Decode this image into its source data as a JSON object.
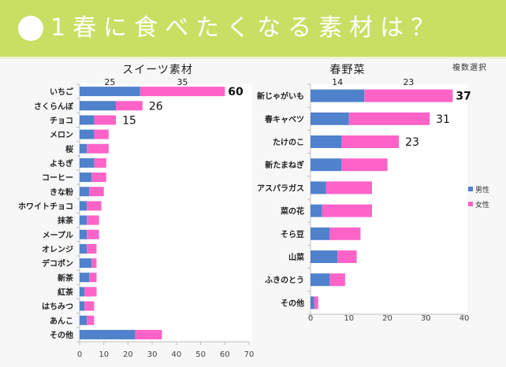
{
  "banner": {
    "title": "1春に食べたくなる素材は？",
    "icon": "white-circle-bullet"
  },
  "note": "複数選択",
  "colors": {
    "male": "#4f81cc",
    "female": "#ff63c8",
    "banner": "#c8df64"
  },
  "chart_data": [
    {
      "type": "bar",
      "orientation": "horizontal",
      "stacked": true,
      "title": "スイーツ素材",
      "xlabel": "",
      "ylabel": "",
      "xlim": [
        0,
        70
      ],
      "xticks": [
        0,
        10,
        20,
        30,
        40,
        50,
        60,
        70
      ],
      "grid": false,
      "categories": [
        "いちご",
        "さくらんぼ",
        "チョコ",
        "メロン",
        "桜",
        "よもぎ",
        "コーヒー",
        "きな粉",
        "ホワイトチョコ",
        "抹茶",
        "メープル",
        "オレンジ",
        "デコポン",
        "新茶",
        "紅茶",
        "はちみつ",
        "あんこ",
        "その他"
      ],
      "series": [
        {
          "name": "男性",
          "values": [
            25,
            15,
            6,
            6,
            3,
            6,
            5,
            4,
            3,
            3,
            3,
            3,
            5,
            4,
            2,
            2,
            3,
            23
          ]
        },
        {
          "name": "女性",
          "values": [
            35,
            11,
            9,
            6,
            9,
            5,
            6,
            6,
            6,
            5,
            5,
            4,
            2,
            3,
            5,
            4,
            3,
            11
          ]
        }
      ],
      "totals_labels": [
        {
          "index": 0,
          "text": "60",
          "bold": true
        },
        {
          "index": 1,
          "text": "26",
          "bold": false
        },
        {
          "index": 2,
          "text": "15",
          "bold": false
        }
      ],
      "segment_labels": [
        {
          "index": 0,
          "series": 0,
          "text": "25"
        },
        {
          "index": 0,
          "series": 1,
          "text": "35"
        }
      ]
    },
    {
      "type": "bar",
      "orientation": "horizontal",
      "stacked": true,
      "title": "春野菜",
      "xlabel": "",
      "ylabel": "",
      "xlim": [
        0,
        40
      ],
      "xticks": [
        0,
        10,
        20,
        30,
        40
      ],
      "grid": false,
      "legend": "right",
      "legend_entries": [
        "男性",
        "女性"
      ],
      "categories": [
        "新じゃがいも",
        "春キャベツ",
        "たけのこ",
        "新たまねぎ",
        "アスパラガス",
        "菜の花",
        "そら豆",
        "山菜",
        "ふきのとう",
        "その他"
      ],
      "series": [
        {
          "name": "男性",
          "values": [
            14,
            10,
            8,
            8,
            4,
            3,
            5,
            7,
            5,
            1
          ]
        },
        {
          "name": "女性",
          "values": [
            23,
            21,
            15,
            12,
            12,
            13,
            8,
            5,
            4,
            1
          ]
        }
      ],
      "totals_labels": [
        {
          "index": 0,
          "text": "37",
          "bold": true
        },
        {
          "index": 1,
          "text": "31",
          "bold": false
        },
        {
          "index": 2,
          "text": "23",
          "bold": false
        }
      ],
      "segment_labels": [
        {
          "index": 0,
          "series": 0,
          "text": "14"
        },
        {
          "index": 0,
          "series": 1,
          "text": "23"
        }
      ]
    }
  ]
}
